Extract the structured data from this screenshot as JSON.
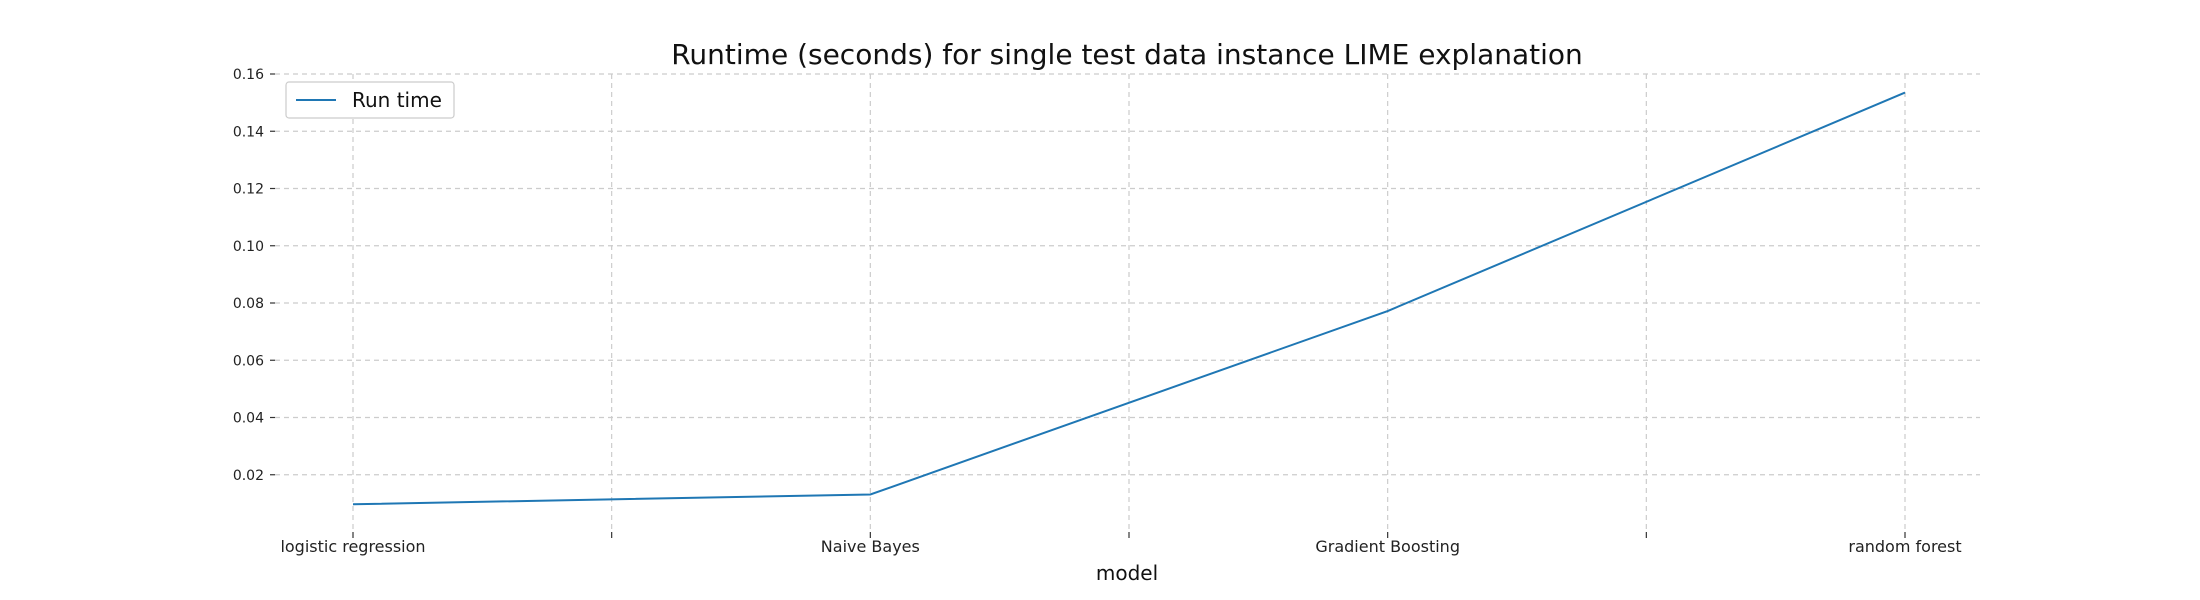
{
  "chart_data": {
    "type": "line",
    "title": "Runtime (seconds) for single test data instance LIME explanation",
    "xlabel": "model",
    "ylabel": "",
    "categories": [
      "logistic regression",
      "Naive Bayes",
      "Gradient Boosting",
      "random forest"
    ],
    "series": [
      {
        "name": "Run time",
        "values": [
          0.0097,
          0.0131,
          0.0772,
          0.1535
        ],
        "color": "#1f77b4"
      }
    ],
    "ylim": [
      0.0,
      0.16
    ],
    "yticks": [
      0.02,
      0.04,
      0.06,
      0.08,
      0.1,
      0.12,
      0.14,
      0.16
    ],
    "ytick_labels": [
      "0.02",
      "0.04",
      "0.06",
      "0.08",
      "0.10",
      "0.12",
      "0.14",
      "0.16"
    ],
    "grid": true,
    "grid_style": "dashed",
    "legend_position": "top-left"
  }
}
